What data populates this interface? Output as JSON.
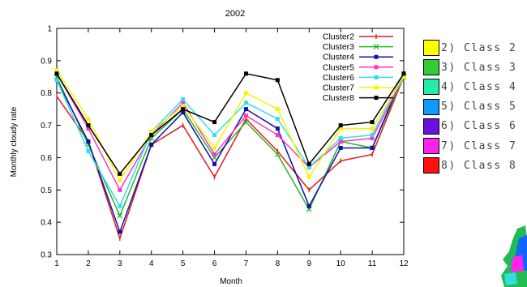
{
  "chart_data": {
    "type": "line",
    "title": "2002",
    "xlabel": "Month",
    "ylabel": "Monthly cloudy rate",
    "x": [
      1,
      2,
      3,
      4,
      5,
      6,
      7,
      8,
      9,
      10,
      11,
      12
    ],
    "xlim": [
      1,
      12
    ],
    "ylim": [
      0.3,
      1.0
    ],
    "xticks": [
      "1",
      "2",
      "3",
      "4",
      "5",
      "6",
      "7",
      "8",
      "9",
      "10",
      "11",
      "12"
    ],
    "yticks": [
      "0.3",
      "0.4",
      "0.5",
      "0.6",
      "0.7",
      "0.8",
      "0.9",
      "1"
    ],
    "grid": false,
    "legend_position": "top-right",
    "series": [
      {
        "name": "Cluster2",
        "color": "#e41a1c",
        "values": [
          0.79,
          0.65,
          0.35,
          0.64,
          0.7,
          0.54,
          0.72,
          0.62,
          0.5,
          0.59,
          0.61,
          0.85
        ]
      },
      {
        "name": "Cluster3",
        "color": "#22bb22",
        "values": [
          0.85,
          0.64,
          0.42,
          0.66,
          0.75,
          0.6,
          0.71,
          0.61,
          0.44,
          0.65,
          0.63,
          0.85
        ]
      },
      {
        "name": "Cluster4",
        "color": "#1111aa",
        "values": [
          0.84,
          0.65,
          0.37,
          0.64,
          0.74,
          0.58,
          0.75,
          0.69,
          0.45,
          0.63,
          0.63,
          0.86
        ]
      },
      {
        "name": "Cluster5",
        "color": "#ff33cc",
        "values": [
          0.86,
          0.69,
          0.5,
          0.67,
          0.77,
          0.61,
          0.73,
          0.67,
          0.57,
          0.65,
          0.66,
          0.85
        ]
      },
      {
        "name": "Cluster6",
        "color": "#33ddee",
        "values": [
          0.84,
          0.62,
          0.45,
          0.68,
          0.78,
          0.67,
          0.77,
          0.72,
          0.57,
          0.66,
          0.67,
          0.86
        ]
      },
      {
        "name": "Cluster7",
        "color": "#f5f500",
        "values": [
          0.87,
          0.72,
          0.53,
          0.68,
          0.76,
          0.63,
          0.8,
          0.75,
          0.54,
          0.69,
          0.69,
          0.85
        ]
      },
      {
        "name": "Cluster8",
        "color": "#000000",
        "values": [
          0.86,
          0.7,
          0.55,
          0.67,
          0.75,
          0.71,
          0.86,
          0.84,
          0.58,
          0.7,
          0.71,
          0.86
        ]
      }
    ]
  },
  "side_legend": [
    {
      "label": "2) Class 2",
      "color": "#ffff00"
    },
    {
      "label": "3) Class 3",
      "color": "#33cc33"
    },
    {
      "label": "4) Class 4",
      "color": "#22eeaa"
    },
    {
      "label": "5) Class 5",
      "color": "#1199ff"
    },
    {
      "label": "6) Class 6",
      "color": "#6a11dd"
    },
    {
      "label": "7) Class 7",
      "color": "#ff22ee"
    },
    {
      "label": "8) Class 8",
      "color": "#ff1111"
    }
  ]
}
